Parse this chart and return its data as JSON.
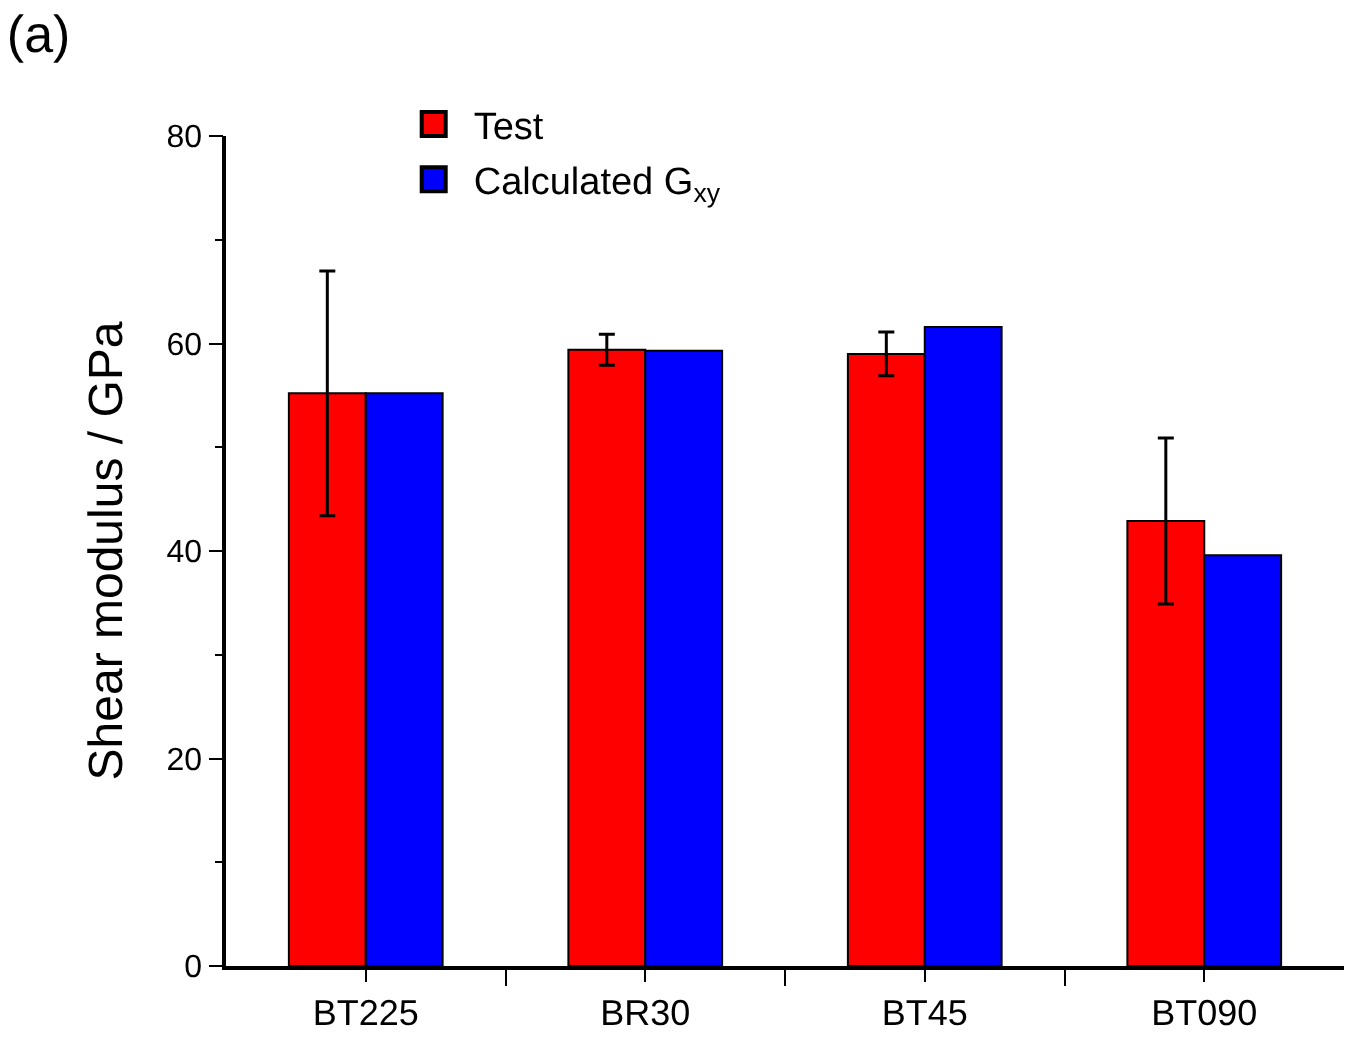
{
  "chart_data": {
    "type": "bar",
    "title": "(a)",
    "ylabel": "Shear modulus / GPa",
    "categories": [
      "BT225",
      "BR30",
      "BT45",
      "BT090"
    ],
    "series": [
      {
        "name": "Test",
        "color": "#ff0000",
        "values": [
          55.2,
          59.4,
          59.0,
          42.9
        ],
        "errors": [
          11.8,
          1.5,
          2.1,
          8.0
        ]
      },
      {
        "name": "Calculated G$_{xy}$",
        "color": "#0000ff",
        "values": [
          55.2,
          59.3,
          61.6,
          39.6
        ]
      }
    ],
    "ylim": [
      0,
      80
    ],
    "yticks": [
      0,
      20,
      40,
      60,
      80
    ],
    "legend": "top left"
  }
}
